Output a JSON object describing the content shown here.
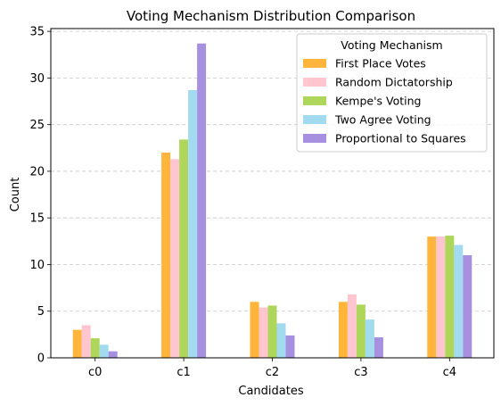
{
  "chart_data": {
    "type": "bar",
    "title": "Voting Mechanism Distribution Comparison",
    "xlabel": "Candidates",
    "ylabel": "Count",
    "categories": [
      "c0",
      "c1",
      "c2",
      "c3",
      "c4"
    ],
    "ylim": [
      0,
      35.3
    ],
    "yticks": [
      0,
      5,
      10,
      15,
      20,
      25,
      30,
      35
    ],
    "grid": "y-dashed",
    "legend": {
      "title": "Voting Mechanism",
      "placement": "top-right"
    },
    "series": [
      {
        "name": "First Place Votes",
        "color": "#FFB43C",
        "values": [
          3.0,
          22.0,
          6.0,
          6.0,
          13.0
        ]
      },
      {
        "name": "Random Dictatorship",
        "color": "#FFC6D0",
        "values": [
          3.5,
          21.3,
          5.4,
          6.8,
          13.0
        ]
      },
      {
        "name": "Kempe's Voting",
        "color": "#AED65A",
        "values": [
          2.1,
          23.4,
          5.6,
          5.7,
          13.1
        ]
      },
      {
        "name": "Two Agree Voting",
        "color": "#A2DBEF",
        "values": [
          1.4,
          28.7,
          3.7,
          4.1,
          12.1
        ]
      },
      {
        "name": "Proportional to Squares",
        "color": "#A890E1",
        "values": [
          0.7,
          33.7,
          2.4,
          2.2,
          11.0
        ]
      }
    ]
  }
}
